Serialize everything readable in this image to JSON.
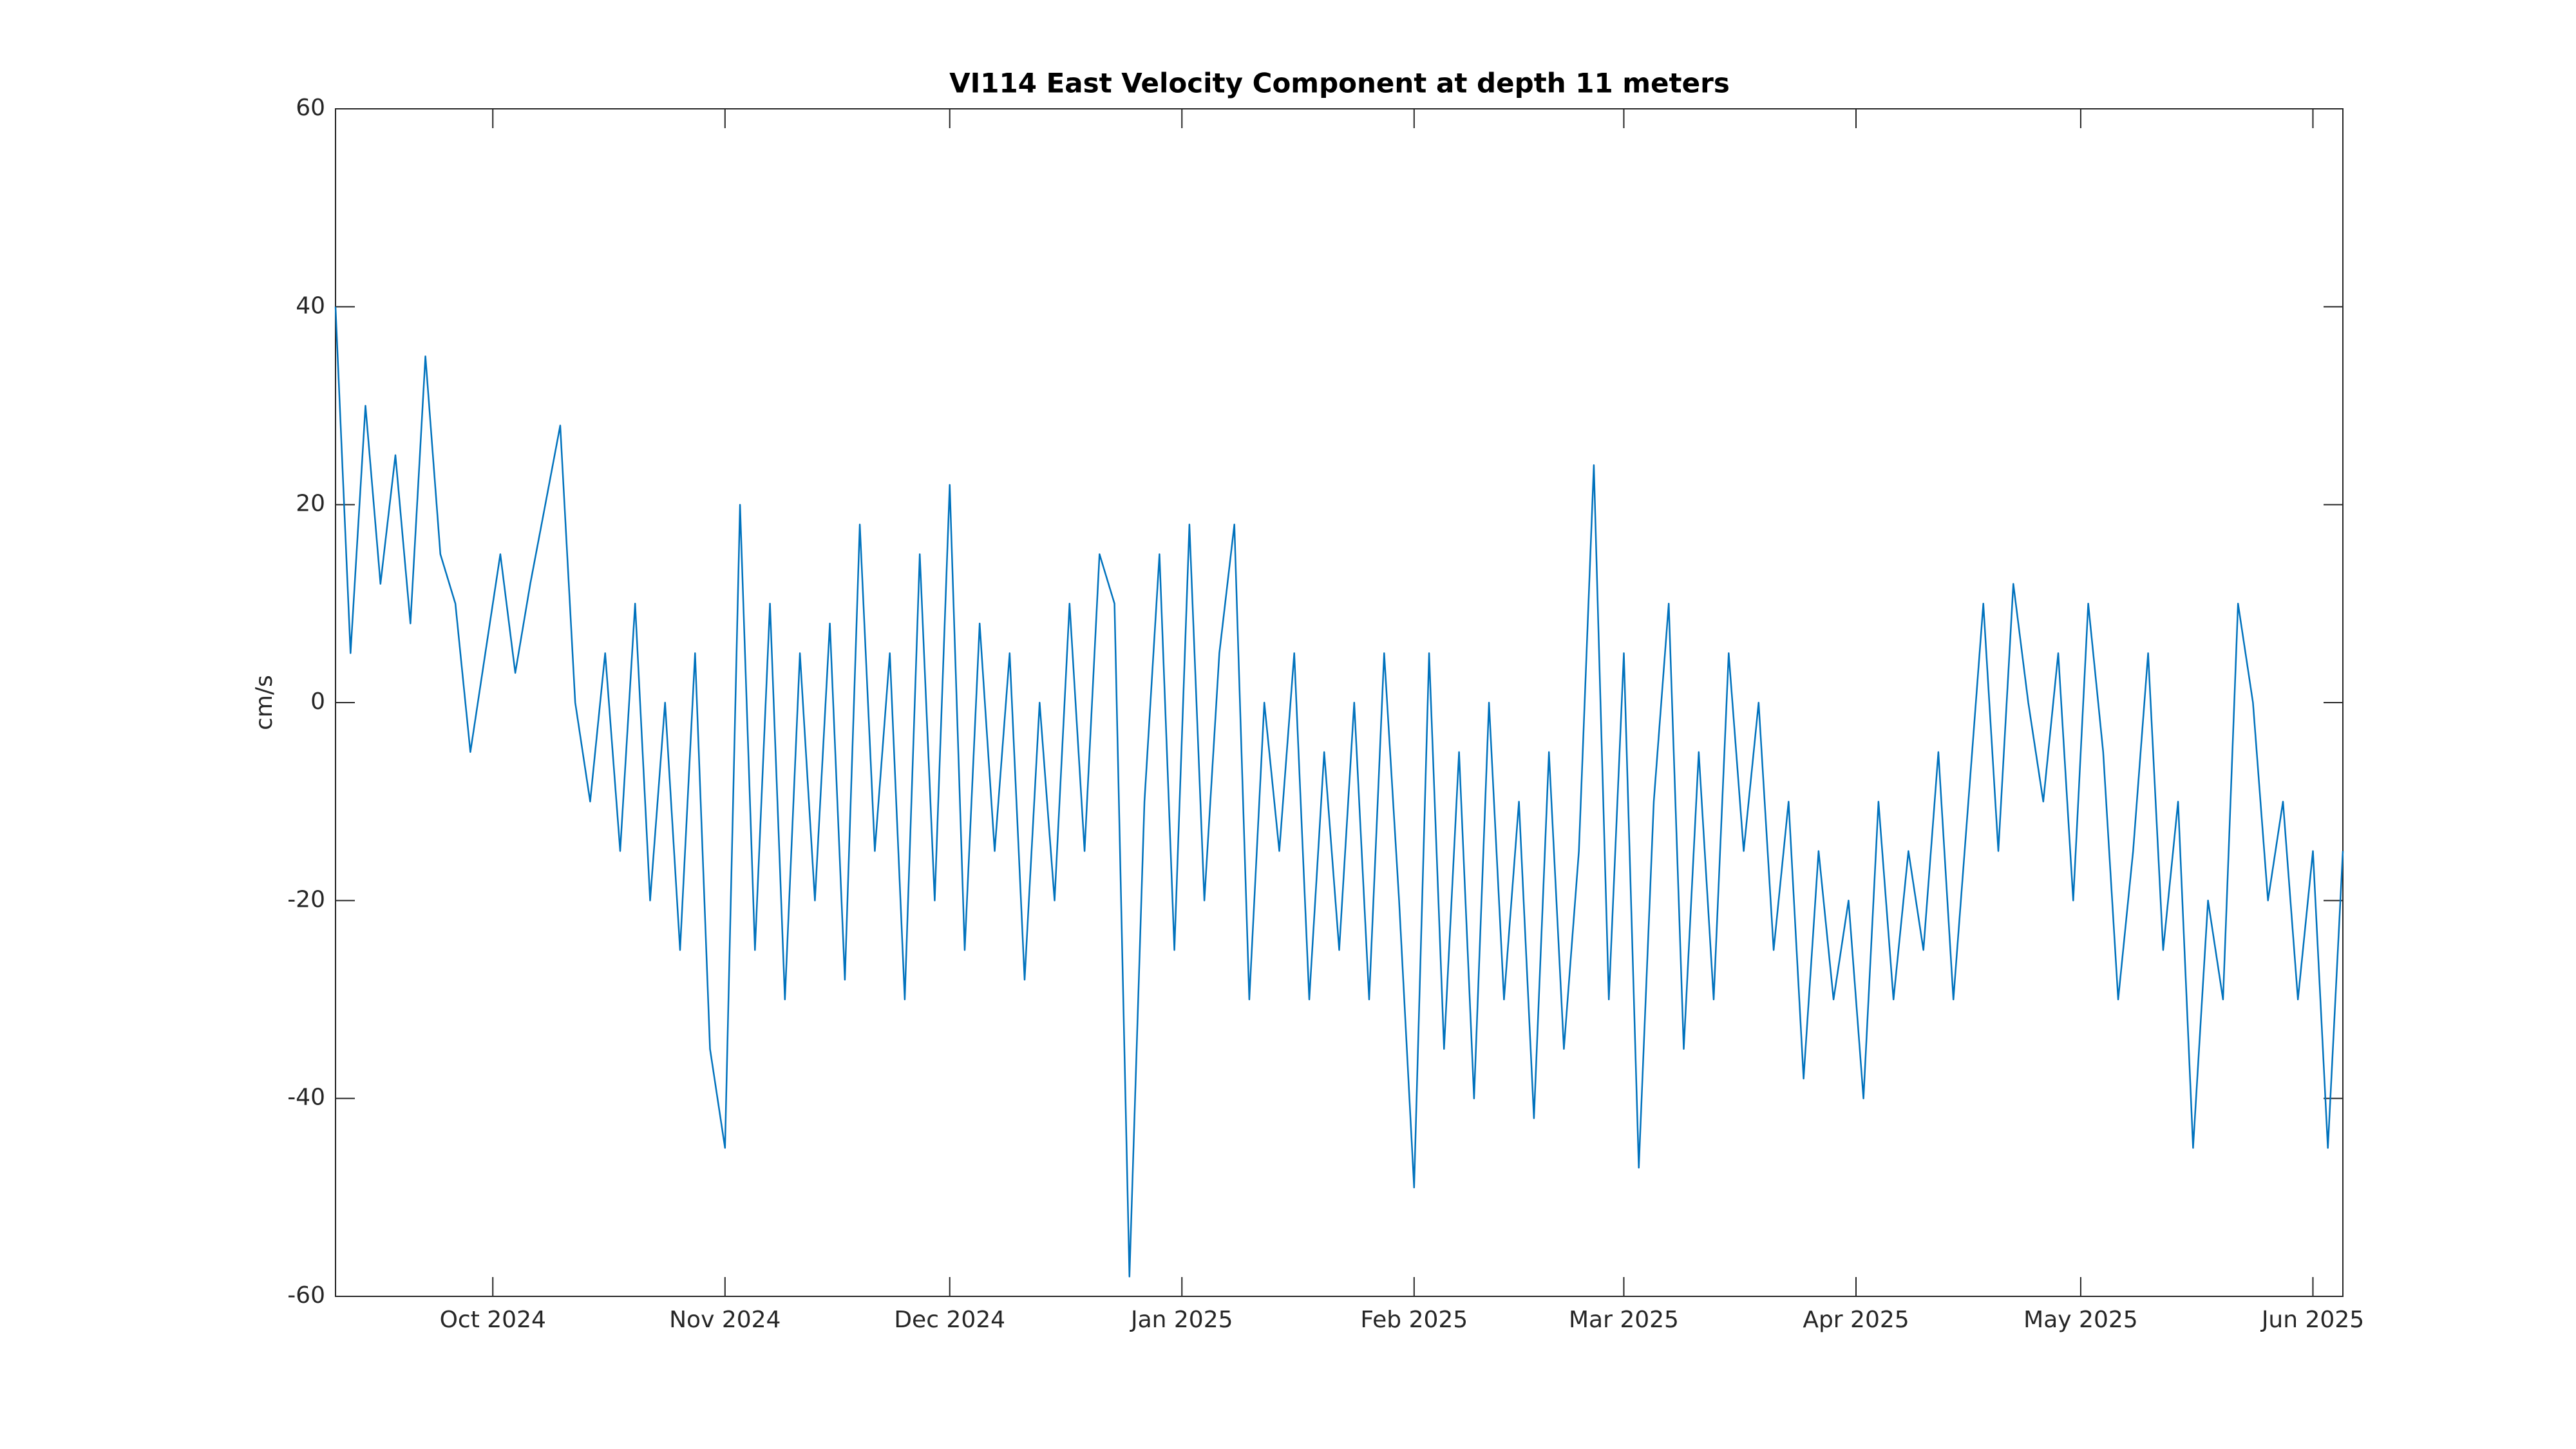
{
  "chart_data": {
    "type": "line",
    "title": "VI114 East Velocity Component at depth 11 meters",
    "y_label": "cm/s",
    "x": [
      "2024-09-10",
      "2024-09-12",
      "2024-09-14",
      "2024-09-16",
      "2024-09-18",
      "2024-09-20",
      "2024-09-22",
      "2024-09-24",
      "2024-09-26",
      "2024-09-28",
      "2024-09-30",
      "2024-10-02",
      "2024-10-04",
      "2024-10-06",
      "2024-10-08",
      "2024-10-10",
      "2024-10-12",
      "2024-10-14",
      "2024-10-16",
      "2024-10-18",
      "2024-10-20",
      "2024-10-22",
      "2024-10-24",
      "2024-10-26",
      "2024-10-28",
      "2024-10-30",
      "2024-11-01",
      "2024-11-03",
      "2024-11-05",
      "2024-11-07",
      "2024-11-09",
      "2024-11-11",
      "2024-11-13",
      "2024-11-15",
      "2024-11-17",
      "2024-11-19",
      "2024-11-21",
      "2024-11-23",
      "2024-11-25",
      "2024-11-27",
      "2024-11-29",
      "2024-12-01",
      "2024-12-03",
      "2024-12-05",
      "2024-12-07",
      "2024-12-09",
      "2024-12-11",
      "2024-12-13",
      "2024-12-15",
      "2024-12-17",
      "2024-12-19",
      "2024-12-21",
      "2024-12-23",
      "2024-12-25",
      "2024-12-27",
      "2024-12-29",
      "2024-12-31",
      "2025-01-02",
      "2025-01-04",
      "2025-01-06",
      "2025-01-08",
      "2025-01-10",
      "2025-01-12",
      "2025-01-14",
      "2025-01-16",
      "2025-01-18",
      "2025-01-20",
      "2025-01-22",
      "2025-01-24",
      "2025-01-26",
      "2025-01-28",
      "2025-01-30",
      "2025-02-01",
      "2025-02-03",
      "2025-02-05",
      "2025-02-07",
      "2025-02-09",
      "2025-02-11",
      "2025-02-13",
      "2025-02-15",
      "2025-02-17",
      "2025-02-19",
      "2025-02-21",
      "2025-02-23",
      "2025-02-25",
      "2025-02-27",
      "2025-03-01",
      "2025-03-03",
      "2025-03-05",
      "2025-03-07",
      "2025-03-09",
      "2025-03-11",
      "2025-03-13",
      "2025-03-15",
      "2025-03-17",
      "2025-03-19",
      "2025-03-21",
      "2025-03-23",
      "2025-03-25",
      "2025-03-27",
      "2025-03-29",
      "2025-03-31",
      "2025-04-02",
      "2025-04-04",
      "2025-04-06",
      "2025-04-08",
      "2025-04-10",
      "2025-04-12",
      "2025-04-14",
      "2025-04-16",
      "2025-04-18",
      "2025-04-20",
      "2025-04-22",
      "2025-04-24",
      "2025-04-26",
      "2025-04-28",
      "2025-04-30",
      "2025-05-02",
      "2025-05-04",
      "2025-05-06",
      "2025-05-08",
      "2025-05-10",
      "2025-05-12",
      "2025-05-14",
      "2025-05-16",
      "2025-05-18",
      "2025-05-20",
      "2025-05-22",
      "2025-05-24",
      "2025-05-26",
      "2025-05-28",
      "2025-05-30",
      "2025-06-01",
      "2025-06-03",
      "2025-06-05"
    ],
    "series": [
      {
        "name": "East velocity",
        "color": "#0072bd",
        "values": [
          40,
          5,
          30,
          12,
          25,
          8,
          35,
          15,
          10,
          -5,
          5,
          15,
          3,
          12,
          20,
          28,
          0,
          -10,
          5,
          -15,
          10,
          -20,
          0,
          -25,
          5,
          -35,
          -45,
          20,
          -25,
          10,
          -30,
          5,
          -20,
          8,
          -28,
          18,
          -15,
          5,
          -30,
          15,
          -20,
          22,
          -25,
          8,
          -15,
          5,
          -28,
          0,
          -20,
          10,
          -15,
          15,
          10,
          -58,
          -10,
          15,
          -25,
          18,
          -20,
          5,
          18,
          -30,
          0,
          -15,
          5,
          -30,
          -5,
          -25,
          0,
          -30,
          5,
          -20,
          -49,
          5,
          -35,
          -5,
          -40,
          0,
          -30,
          -10,
          -42,
          -5,
          -35,
          -15,
          24,
          -30,
          5,
          -47,
          -10,
          10,
          -35,
          -5,
          -30,
          5,
          -15,
          0,
          -25,
          -10,
          -38,
          -15,
          -30,
          -20,
          -40,
          -10,
          -30,
          -15,
          -25,
          -5,
          -30,
          -10,
          10,
          -15,
          12,
          0,
          -10,
          5,
          -20,
          10,
          -5,
          -30,
          -15,
          5,
          -25,
          -10,
          -45,
          -20,
          -30,
          10,
          0,
          -20,
          -10,
          -30,
          -15,
          -45,
          -15
        ]
      }
    ],
    "xlim": [
      "2024-09-10",
      "2025-06-05"
    ],
    "xticks": [
      {
        "value": "2024-10-01",
        "label": "Oct 2024"
      },
      {
        "value": "2024-11-01",
        "label": "Nov 2024"
      },
      {
        "value": "2024-12-01",
        "label": "Dec 2024"
      },
      {
        "value": "2025-01-01",
        "label": "Jan 2025"
      },
      {
        "value": "2025-02-01",
        "label": "Feb 2025"
      },
      {
        "value": "2025-03-01",
        "label": "Mar 2025"
      },
      {
        "value": "2025-04-01",
        "label": "Apr 2025"
      },
      {
        "value": "2025-05-01",
        "label": "May 2025"
      },
      {
        "value": "2025-06-01",
        "label": "Jun 2025"
      }
    ],
    "ylim": [
      -60,
      60
    ],
    "yticks": [
      -60,
      -40,
      -20,
      0,
      20,
      40,
      60
    ],
    "grid": false
  }
}
